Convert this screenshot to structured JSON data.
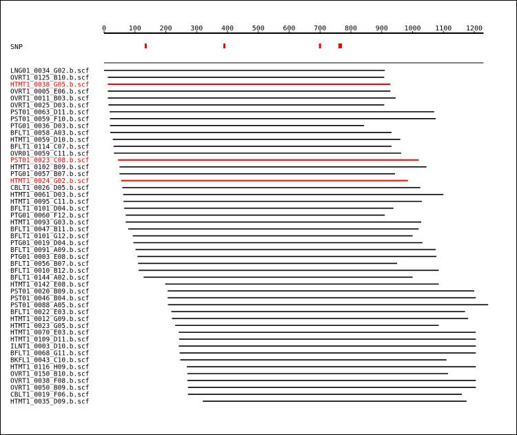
{
  "axis": {
    "ticks": [
      0,
      100,
      200,
      300,
      400,
      500,
      600,
      700,
      800,
      900,
      1000,
      1100,
      1200
    ],
    "range": [
      0,
      1230
    ]
  },
  "snp": {
    "label": "SNP",
    "positions": [
      135,
      390,
      700,
      763,
      768
    ],
    "color": "#ff0000"
  },
  "reads": [
    {
      "name": "LNG01_0034_G02.b.scf",
      "start": 0,
      "end": 910,
      "highlight": false
    },
    {
      "name": "OVRT1_0125_B10.b.scf",
      "start": 12,
      "end": 908,
      "highlight": false
    },
    {
      "name": "HTMT1_0038_G05.b.scf",
      "start": 12,
      "end": 928,
      "highlight": true
    },
    {
      "name": "OVRT1_0005_E06.b.scf",
      "start": 12,
      "end": 928,
      "highlight": false
    },
    {
      "name": "OVRT1_0011_B03.b.scf",
      "start": 12,
      "end": 945,
      "highlight": false
    },
    {
      "name": "OVRT1_0025_D03.b.scf",
      "start": 14,
      "end": 908,
      "highlight": false
    },
    {
      "name": "PST01_0063_D11.b.scf",
      "start": 18,
      "end": 1070,
      "highlight": false
    },
    {
      "name": "PST01_0059_F10.b.scf",
      "start": 19,
      "end": 1075,
      "highlight": false
    },
    {
      "name": "PTG01_0036_D03.b.scf",
      "start": 19,
      "end": 843,
      "highlight": false
    },
    {
      "name": "BFLT1_0058_A03.b.scf",
      "start": 20,
      "end": 932,
      "highlight": false
    },
    {
      "name": "HTMT1_0059_D10.b.scf",
      "start": 28,
      "end": 960,
      "highlight": false
    },
    {
      "name": "BFLT1_0114_C07.b.scf",
      "start": 31,
      "end": 932,
      "highlight": false
    },
    {
      "name": "OVR01_0059_C11.b.scf",
      "start": 32,
      "end": 963,
      "highlight": false
    },
    {
      "name": "PST01_0023_C08.b.scf",
      "start": 45,
      "end": 1020,
      "highlight": true
    },
    {
      "name": "HTMT1_0102_B09.b.scf",
      "start": 50,
      "end": 1045,
      "highlight": false
    },
    {
      "name": "PTG01_0057_B07.b.scf",
      "start": 50,
      "end": 943,
      "highlight": false
    },
    {
      "name": "HTMT1_0024_G02.b.scf",
      "start": 55,
      "end": 985,
      "highlight": true
    },
    {
      "name": "CBLT1_0026_D05.b.scf",
      "start": 59,
      "end": 1025,
      "highlight": false
    },
    {
      "name": "HTMT1_0061_D03.b.scf",
      "start": 62,
      "end": 1100,
      "highlight": false
    },
    {
      "name": "HTMT1_0095_C11.b.scf",
      "start": 63,
      "end": 1030,
      "highlight": false
    },
    {
      "name": "BFLT1_0101_D04.b.scf",
      "start": 65,
      "end": 938,
      "highlight": false
    },
    {
      "name": "PTG01_0060_F12.b.scf",
      "start": 70,
      "end": 910,
      "highlight": false
    },
    {
      "name": "HTMT1_0093_G03.b.scf",
      "start": 70,
      "end": 1028,
      "highlight": false
    },
    {
      "name": "BFLT1_0047_B11.b.scf",
      "start": 78,
      "end": 1020,
      "highlight": false
    },
    {
      "name": "BFLT1_0101_G12.b.scf",
      "start": 93,
      "end": 1000,
      "highlight": false
    },
    {
      "name": "PTG01_0019_D04.b.scf",
      "start": 95,
      "end": 1032,
      "highlight": false
    },
    {
      "name": "BFLT1_0091_A09.b.scf",
      "start": 102,
      "end": 1075,
      "highlight": false
    },
    {
      "name": "PTG01_0003_E08.b.scf",
      "start": 108,
      "end": 1077,
      "highlight": false
    },
    {
      "name": "BFLT1_0056_B07.b.scf",
      "start": 110,
      "end": 950,
      "highlight": false
    },
    {
      "name": "BFLT1_0010_B12.b.scf",
      "start": 112,
      "end": 1085,
      "highlight": false
    },
    {
      "name": "BFLT1_0144_A02.b.scf",
      "start": 128,
      "end": 1000,
      "highlight": false
    },
    {
      "name": "HTMT1_0142_E08.b.scf",
      "start": 198,
      "end": 1085,
      "highlight": false
    },
    {
      "name": "PST01_0020_B09.b.scf",
      "start": 206,
      "end": 1200,
      "highlight": false
    },
    {
      "name": "PST01_0046_B04.b.scf",
      "start": 206,
      "end": 1205,
      "highlight": false
    },
    {
      "name": "PST01_0088_A05.b.scf",
      "start": 207,
      "end": 1245,
      "highlight": false
    },
    {
      "name": "BFLT1_0022_E03.b.scf",
      "start": 218,
      "end": 1170,
      "highlight": false
    },
    {
      "name": "HTMT1_0012_G09.b.scf",
      "start": 220,
      "end": 1180,
      "highlight": false
    },
    {
      "name": "HTMT1_0023_G05.b.scf",
      "start": 230,
      "end": 1085,
      "highlight": false
    },
    {
      "name": "HTMT1_0070_E03.b.scf",
      "start": 242,
      "end": 1205,
      "highlight": false
    },
    {
      "name": "HTMT1_0109_D11.b.scf",
      "start": 243,
      "end": 1205,
      "highlight": false
    },
    {
      "name": "ILNT1_0003_D10.b.scf",
      "start": 242,
      "end": 1205,
      "highlight": false
    },
    {
      "name": "BFLT1_0068_G11.b.scf",
      "start": 245,
      "end": 1205,
      "highlight": false
    },
    {
      "name": "BKFL1_0043_C10.b.scf",
      "start": 247,
      "end": 1110,
      "highlight": false
    },
    {
      "name": "HTMT1_0116_H09.b.scf",
      "start": 268,
      "end": 1205,
      "highlight": false
    },
    {
      "name": "OVRT1_0150_B10.b.scf",
      "start": 270,
      "end": 1115,
      "highlight": false
    },
    {
      "name": "OVRT1_0038_F08.b.scf",
      "start": 270,
      "end": 1205,
      "highlight": false
    },
    {
      "name": "OVRT1_0050_B09.b.scf",
      "start": 272,
      "end": 1205,
      "highlight": false
    },
    {
      "name": "CBLT1_0019_F06.b.scf",
      "start": 272,
      "end": 1160,
      "highlight": false
    },
    {
      "name": "HTMT1_0035_D09.b.scf",
      "start": 320,
      "end": 1175,
      "highlight": false
    }
  ],
  "reference": {
    "start": 0,
    "end": 1230
  },
  "colors": {
    "normal": "#000000",
    "highlight": "#ff0000",
    "background": "#ffffff"
  }
}
